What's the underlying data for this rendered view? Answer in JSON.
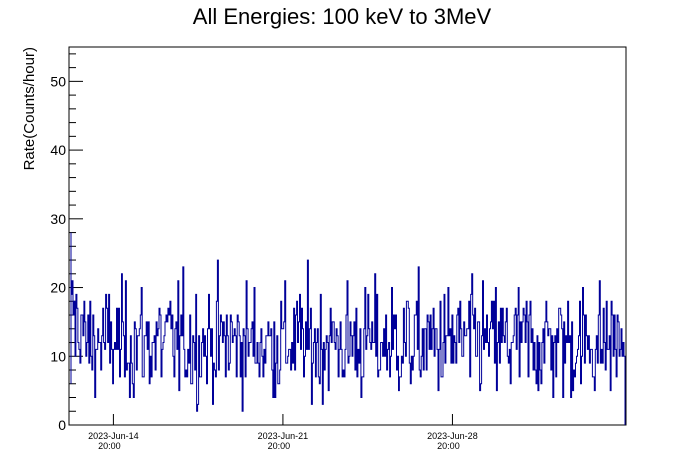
{
  "chart_data": {
    "type": "line",
    "title": "All Energies:  100 keV to 3MeV",
    "ylabel": "Rate(Counts/hour)",
    "xlabel": "",
    "ylim": [
      0,
      55
    ],
    "y_ticks": [
      0,
      10,
      20,
      30,
      40,
      50
    ],
    "x_ticks": [
      {
        "date": "2023-Jun-14",
        "time": "20:00"
      },
      {
        "date": "2023-Jun-21",
        "time": "20:00"
      },
      {
        "date": "2023-Jun-28",
        "time": "20:00"
      }
    ],
    "x_range": [
      "2023-Jun-13 00:00",
      "2023-Jul-06 00:00"
    ],
    "series_color": "#000099",
    "typical_rate": 12,
    "rate_min": 2,
    "rate_max": 28
  }
}
